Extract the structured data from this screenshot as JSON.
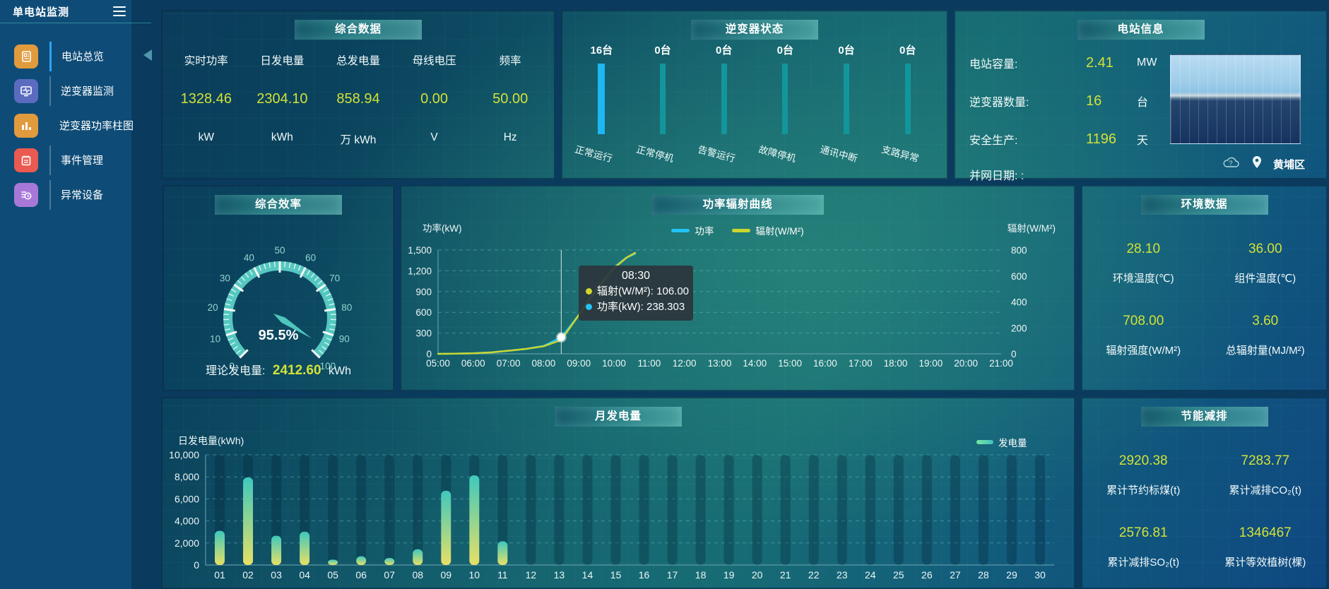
{
  "app": {
    "title": "单电站监测"
  },
  "sidebar": {
    "items": [
      {
        "label": "电站总览",
        "icon": "station-overview-icon",
        "color": "#e19a3c",
        "active": true
      },
      {
        "label": "逆变器监测",
        "icon": "inverter-monitor-icon",
        "color": "#5b6cc0",
        "active": false
      },
      {
        "label": "逆变器功率柱图",
        "icon": "inverter-power-bars-icon",
        "color": "#e19a3c",
        "active": false
      },
      {
        "label": "事件管理",
        "icon": "event-management-icon",
        "color": "#ea5a50",
        "active": false
      },
      {
        "label": "异常设备",
        "icon": "abnormal-device-icon",
        "color": "#a878d8",
        "active": false
      }
    ]
  },
  "overview": {
    "title": "综合数据",
    "metrics": [
      {
        "label": "实时功率",
        "value": "1328.46",
        "unit": "kW"
      },
      {
        "label": "日发电量",
        "value": "2304.10",
        "unit": "kWh"
      },
      {
        "label": "总发电量",
        "value": "858.94",
        "unit": "万 kWh"
      },
      {
        "label": "母线电压",
        "value": "0.00",
        "unit": "V"
      },
      {
        "label": "频率",
        "value": "50.00",
        "unit": "Hz"
      }
    ],
    "value_color": "#d2e137"
  },
  "inverter_status": {
    "title": "逆变器状态",
    "active_bar_color": "#1db7f2",
    "idle_bar_color": "#12969b",
    "units": [
      {
        "count": "16台",
        "label": "正常运行"
      },
      {
        "count": "0台",
        "label": "正常停机"
      },
      {
        "count": "0台",
        "label": "告警运行"
      },
      {
        "count": "0台",
        "label": "故障停机"
      },
      {
        "count": "0台",
        "label": "通讯中断"
      },
      {
        "count": "0台",
        "label": "支路异常"
      }
    ]
  },
  "station_info": {
    "title": "电站信息",
    "rows": [
      {
        "label": "电站容量:",
        "value": "2.41",
        "unit": "MW"
      },
      {
        "label": "逆变器数量:",
        "value": "16",
        "unit": "台"
      },
      {
        "label": "安全生产:",
        "value": "1196",
        "unit": "天"
      },
      {
        "label": "并网日期:  :",
        "value": "",
        "unit": ""
      }
    ],
    "location": "黄埔区"
  },
  "efficiency": {
    "value_label": "95.5%",
    "theory_label": "理论发电量:",
    "theory_value": "2412.60",
    "theory_unit": "kWh"
  },
  "environment": {
    "title": "环境数据",
    "stats": [
      {
        "value": "28.10",
        "label": "环境温度(℃)"
      },
      {
        "value": "36.00",
        "label": "组件温度(℃)"
      },
      {
        "value": "708.00",
        "label": "辐射强度(W/M²)"
      },
      {
        "value": "3.60",
        "label": "总辐射量(MJ/M²)"
      }
    ]
  },
  "energy_saving": {
    "title": "节能减排",
    "stats": [
      {
        "value": "2920.38",
        "label": "累计节约标煤(t)"
      },
      {
        "value": "7283.77",
        "label": "累计减排CO₂(t)"
      },
      {
        "value": "2576.81",
        "label": "累计减排SO₂(t)"
      },
      {
        "value": "1346467",
        "label": "累计等效植树(棵)"
      }
    ]
  },
  "chart_data": [
    {
      "id": "efficiency_gauge",
      "type": "gauge",
      "title": "综合效率",
      "min": 0,
      "max": 100,
      "tick_step": 10,
      "minor_step": 2,
      "value": 95.5,
      "value_display": "95.5%",
      "arc_color": "#55c8c0",
      "label_color": "#8fd6d0",
      "needle_color": "#4fc6bd"
    },
    {
      "id": "power_radiation",
      "type": "line",
      "title": "功率辐射曲线",
      "x_labels": [
        "05:00",
        "06:00",
        "07:00",
        "08:00",
        "09:00",
        "10:00",
        "11:00",
        "12:00",
        "13:00",
        "14:00",
        "15:00",
        "16:00",
        "17:00",
        "18:00",
        "19:00",
        "20:00",
        "21:00"
      ],
      "left_axis": {
        "label": "功率(kW)",
        "min": 0,
        "max": 1500,
        "step": 300
      },
      "right_axis": {
        "label": "辐射(W/M²)",
        "min": 0,
        "max": 800,
        "step": 200
      },
      "grid": true,
      "legend_position": "top-center",
      "series": [
        {
          "name": "功率",
          "color": "#24c2f4",
          "axis": "left",
          "points": [
            [
              5,
              0
            ],
            [
              5.5,
              2
            ],
            [
              6,
              8
            ],
            [
              6.5,
              20
            ],
            [
              7,
              45
            ],
            [
              7.5,
              70
            ],
            [
              8,
              115
            ],
            [
              8.5,
              238.3
            ],
            [
              9,
              560
            ],
            [
              9.5,
              950
            ],
            [
              10,
              1250
            ],
            [
              10.35,
              1390
            ],
            [
              10.6,
              1445
            ]
          ]
        },
        {
          "name": "辐射(W/M²)",
          "color": "#c9d630",
          "axis": "right",
          "points": [
            [
              5,
              0
            ],
            [
              5.5,
              1
            ],
            [
              6,
              4
            ],
            [
              6.5,
              11
            ],
            [
              7,
              24
            ],
            [
              7.5,
              38
            ],
            [
              8,
              58
            ],
            [
              8.5,
              106
            ],
            [
              9,
              300
            ],
            [
              9.5,
              495
            ],
            [
              10,
              660
            ],
            [
              10.35,
              740
            ],
            [
              10.6,
              778
            ]
          ]
        }
      ],
      "tooltip": {
        "time": "08:30",
        "x_hour": 8.5,
        "marker_value": 238.303,
        "rows": [
          {
            "text": "辐射(W/M²): 106.00",
            "color": "#d4d62c"
          },
          {
            "text": "功率(kW): 238.303",
            "color": "#24c2f4"
          }
        ]
      }
    },
    {
      "id": "monthly_generation",
      "type": "bar",
      "title": "月发电量",
      "ylabel": "日发电量(kWh)",
      "legend": "发电量",
      "ylim": [
        0,
        10000
      ],
      "ytick_step": 2000,
      "grid": true,
      "categories": [
        "01",
        "02",
        "03",
        "04",
        "05",
        "06",
        "07",
        "08",
        "09",
        "10",
        "11",
        "12",
        "13",
        "14",
        "15",
        "16",
        "17",
        "18",
        "19",
        "20",
        "21",
        "22",
        "23",
        "24",
        "25",
        "26",
        "27",
        "28",
        "29",
        "30"
      ],
      "values": [
        3100,
        7950,
        2650,
        3020,
        490,
        790,
        640,
        1430,
        6740,
        8130,
        2150,
        0,
        0,
        0,
        0,
        0,
        0,
        0,
        0,
        0,
        0,
        0,
        0,
        0,
        0,
        0,
        0,
        0,
        0,
        0
      ],
      "bar_gradient": [
        "#3fc8bd",
        "#e7e065"
      ]
    }
  ]
}
